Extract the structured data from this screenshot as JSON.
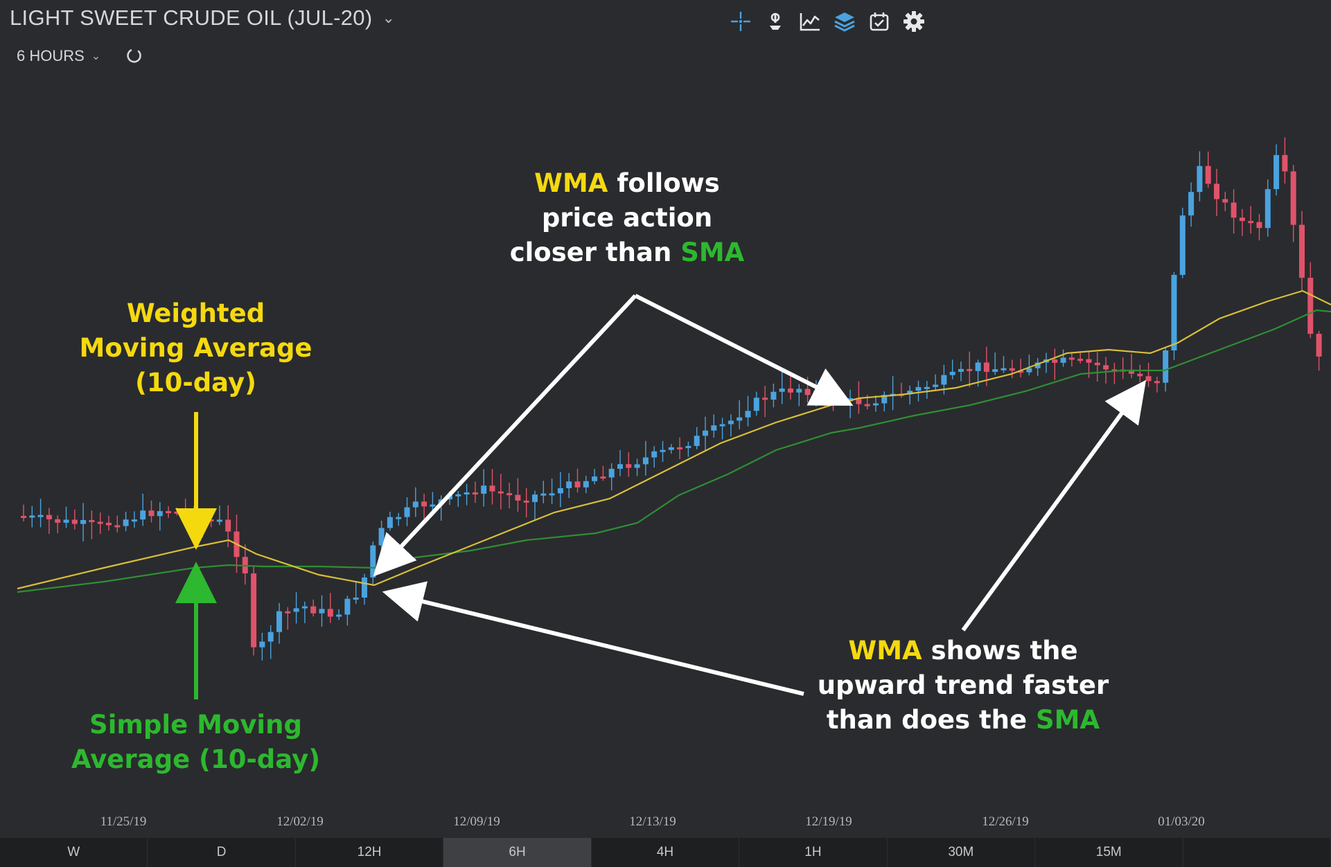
{
  "header": {
    "title": "LIGHT SWEET CRUDE OIL (JUL-20)",
    "interval": "6 HOURS"
  },
  "toolbar": {
    "icons": [
      "crosshair-icon",
      "pin-icon",
      "line-chart-icon",
      "layers-icon",
      "calendar-icon",
      "gear-icon"
    ],
    "accent_color": "#4aa3df"
  },
  "annotations": {
    "wma_label": {
      "line1": "Weighted",
      "line2": "Moving Average",
      "line3": "(10-day)"
    },
    "sma_label": {
      "line1": "Simple Moving",
      "line2": "Average (10-day)"
    },
    "top_note": {
      "wma": "WMA",
      "line1_rest": " follows",
      "line2": "price action",
      "line3_start": "closer than ",
      "sma": "SMA"
    },
    "bottom_note": {
      "wma": "WMA",
      "line1_rest": " shows the",
      "line2": "upward trend faster",
      "line3_start": "than does the ",
      "sma": "SMA"
    }
  },
  "date_axis": [
    "11/25/19",
    "12/02/19",
    "12/09/19",
    "12/13/19",
    "12/19/19",
    "12/26/19",
    "01/03/20"
  ],
  "timeframes": [
    "W",
    "D",
    "12H",
    "6H",
    "4H",
    "1H",
    "30M",
    "15M",
    ""
  ],
  "active_timeframe": "6H",
  "colors": {
    "up": "#4aa3df",
    "down": "#e0536a",
    "wma": "#d8bf3a",
    "sma": "#2f8f34",
    "background": "#2a2b2e"
  },
  "chart_data": {
    "type": "candlestick",
    "series": [
      {
        "name": "Weighted Moving Average (10-day)",
        "color": "#d8bf3a"
      },
      {
        "name": "Simple Moving Average (10-day)",
        "color": "#2f8f34"
      }
    ],
    "x_labels": [
      "11/25/19",
      "12/02/19",
      "12/09/19",
      "12/13/19",
      "12/19/19",
      "12/26/19",
      "01/03/20"
    ],
    "grid": false
  }
}
